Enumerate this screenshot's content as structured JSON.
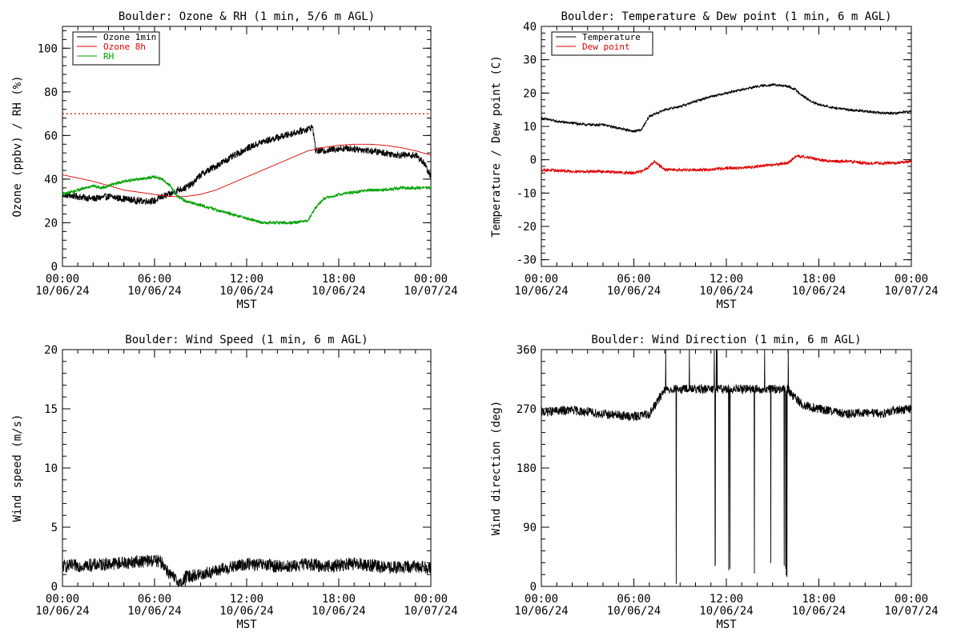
{
  "chart_data": [
    {
      "type": "line",
      "title": "Boulder: Ozone & RH (1 min, 5/6 m AGL)",
      "ylabel": "Ozone (ppbv) / RH (%)",
      "xlabel": "MST",
      "ylim": [
        0,
        110
      ],
      "yticks": [
        0,
        20,
        40,
        60,
        80,
        100
      ],
      "xlim": [
        0,
        24
      ],
      "xticks": [
        {
          "time": "00:00",
          "date": "10/06/24"
        },
        {
          "time": "06:00",
          "date": "10/06/24"
        },
        {
          "time": "12:00",
          "date": "10/06/24"
        },
        {
          "time": "18:00",
          "date": "10/06/24"
        },
        {
          "time": "00:00",
          "date": "10/07/24"
        }
      ],
      "legend": {
        "placement": "top-left",
        "entries": [
          {
            "label": "Ozone 1min",
            "color": "#000000"
          },
          {
            "label": "Ozone 8h",
            "color": "#e00000"
          },
          {
            "label": "RH",
            "color": "#00a000"
          }
        ]
      },
      "reference_lines": [
        {
          "y": 70,
          "color": "#e00000",
          "style": "dotted"
        }
      ],
      "series": [
        {
          "name": "Ozone 1min",
          "color": "#000000",
          "noise": 1.6,
          "x": [
            0,
            1,
            2,
            3,
            4,
            5,
            6,
            6.5,
            7,
            7.5,
            8,
            8.5,
            9,
            10,
            11,
            12,
            13,
            14,
            15,
            16,
            16.3,
            16.5,
            17,
            18,
            19,
            20,
            21,
            22,
            23,
            23.5,
            24
          ],
          "y": [
            33,
            32,
            31,
            32,
            31,
            30,
            30,
            32,
            33,
            35,
            36,
            38,
            42,
            46,
            50,
            54,
            57,
            59,
            61,
            63,
            64,
            53,
            53,
            54,
            54,
            53,
            52,
            51,
            51,
            48,
            41
          ]
        },
        {
          "name": "Ozone 8h",
          "color": "#e00000",
          "noise": 0,
          "x": [
            0,
            2,
            4,
            6,
            7,
            8,
            9,
            10,
            11,
            12,
            13,
            14,
            15,
            16,
            17,
            18,
            19,
            20,
            21,
            22,
            23,
            24
          ],
          "y": [
            42,
            39,
            35,
            33,
            32,
            32,
            33,
            35,
            38,
            41,
            44,
            47,
            50,
            53,
            54.5,
            55.5,
            56,
            56,
            55.5,
            54.5,
            53,
            51
          ]
        },
        {
          "name": "RH",
          "color": "#00a000",
          "noise": 0.7,
          "x": [
            0,
            1,
            2,
            2.5,
            3,
            4,
            5,
            6,
            6.5,
            7,
            7.5,
            8,
            9,
            10,
            11,
            12,
            13,
            14,
            15,
            16,
            16.5,
            17,
            18,
            19,
            20,
            21,
            22,
            23,
            24
          ],
          "y": [
            33,
            35,
            37,
            36,
            37,
            39,
            40,
            41,
            40,
            37,
            32,
            30,
            28,
            26,
            24,
            22,
            20,
            20,
            20,
            21,
            27,
            31,
            33,
            34,
            35,
            35,
            36,
            36,
            36
          ]
        }
      ]
    },
    {
      "type": "line",
      "title": "Boulder: Temperature & Dew point (1 min, 6 m AGL)",
      "ylabel": "Temperature / Dew point (C)",
      "xlabel": "MST",
      "ylim": [
        -32,
        40
      ],
      "yticks": [
        -30,
        -20,
        -10,
        0,
        10,
        20,
        30,
        40
      ],
      "xlim": [
        0,
        24
      ],
      "xticks": [
        {
          "time": "00:00",
          "date": "10/06/24"
        },
        {
          "time": "06:00",
          "date": "10/06/24"
        },
        {
          "time": "12:00",
          "date": "10/06/24"
        },
        {
          "time": "18:00",
          "date": "10/06/24"
        },
        {
          "time": "00:00",
          "date": "10/07/24"
        }
      ],
      "legend": {
        "placement": "top-left",
        "entries": [
          {
            "label": "Temperature",
            "color": "#000000"
          },
          {
            "label": "Dew point",
            "color": "#e00000"
          }
        ]
      },
      "series": [
        {
          "name": "Temperature",
          "color": "#000000",
          "noise": 0.35,
          "x": [
            0,
            1,
            2,
            3,
            4,
            5,
            5.5,
            6,
            6.5,
            7,
            7.5,
            8,
            9,
            10,
            11,
            12,
            13,
            14,
            15,
            16,
            16.5,
            17,
            17.5,
            18,
            19,
            20,
            21,
            22,
            23,
            24
          ],
          "y": [
            12.5,
            11.5,
            11,
            10.5,
            10.5,
            9.5,
            9,
            8.5,
            9,
            13,
            14,
            15,
            16,
            17.5,
            19,
            20,
            21,
            22,
            22.5,
            22,
            21,
            19,
            17.5,
            16.5,
            15.5,
            15,
            14.5,
            14,
            14,
            14.5
          ]
        },
        {
          "name": "Dew point",
          "color": "#e00000",
          "noise": 0.45,
          "x": [
            0,
            2,
            4,
            5,
            6,
            6.5,
            7,
            7.3,
            8,
            9,
            10,
            11,
            12,
            13,
            14,
            15,
            16,
            16.5,
            17,
            18,
            19,
            20,
            21,
            22,
            23,
            24
          ],
          "y": [
            -3,
            -3.5,
            -3.5,
            -3.8,
            -4,
            -3.5,
            -2,
            -0.5,
            -3,
            -3,
            -3,
            -3,
            -2.5,
            -2.5,
            -2,
            -1.5,
            -1,
            1,
            1,
            0,
            -0.5,
            -0.5,
            -1,
            -1,
            -1,
            -0.5
          ]
        }
      ]
    },
    {
      "type": "line",
      "title": "Boulder: Wind Speed (1 min, 6 m AGL)",
      "ylabel": "Wind speed (m/s)",
      "xlabel": "MST",
      "ylim": [
        0,
        20
      ],
      "yticks": [
        0,
        5,
        10,
        15,
        20
      ],
      "xlim": [
        0,
        24
      ],
      "xticks": [
        {
          "time": "00:00",
          "date": "10/06/24"
        },
        {
          "time": "06:00",
          "date": "10/06/24"
        },
        {
          "time": "12:00",
          "date": "10/06/24"
        },
        {
          "time": "18:00",
          "date": "10/06/24"
        },
        {
          "time": "00:00",
          "date": "10/07/24"
        }
      ],
      "series": [
        {
          "name": "Wind speed",
          "color": "#000000",
          "noise": 0.55,
          "x": [
            0,
            2,
            4,
            6,
            6.5,
            7,
            7.5,
            7.8,
            8,
            9,
            10,
            11,
            12,
            13,
            14,
            15,
            16,
            17,
            18,
            19,
            20,
            21,
            22,
            23,
            24
          ],
          "y": [
            1.7,
            1.8,
            2.0,
            2.2,
            2.0,
            1.0,
            0.4,
            0.2,
            0.8,
            1.0,
            1.3,
            1.6,
            1.9,
            1.8,
            1.7,
            1.7,
            1.9,
            1.7,
            1.8,
            1.9,
            1.8,
            1.6,
            1.6,
            1.7,
            1.6
          ]
        }
      ]
    },
    {
      "type": "line",
      "title": "Boulder: Wind Direction (1 min, 6 m AGL)",
      "ylabel": "Wind direction (deg)",
      "xlabel": "MST",
      "ylim": [
        0,
        360
      ],
      "yticks": [
        0,
        90,
        180,
        270,
        360
      ],
      "xlim": [
        0,
        24
      ],
      "xticks": [
        {
          "time": "00:00",
          "date": "10/06/24"
        },
        {
          "time": "06:00",
          "date": "10/06/24"
        },
        {
          "time": "12:00",
          "date": "10/06/24"
        },
        {
          "time": "18:00",
          "date": "10/06/24"
        },
        {
          "time": "00:00",
          "date": "10/07/24"
        }
      ],
      "series": [
        {
          "name": "Wind direction",
          "color": "#000000",
          "noise": 7,
          "x": [
            0,
            2,
            4,
            6,
            7,
            7.5,
            8,
            16,
            16.3,
            17,
            18,
            19,
            20,
            21,
            22,
            23,
            24
          ],
          "y": [
            265,
            268,
            262,
            258,
            262,
            280,
            300,
            300,
            290,
            275,
            270,
            265,
            262,
            265,
            262,
            268,
            270
          ],
          "wrap_range": [
            8.0,
            16.2
          ]
        }
      ]
    }
  ]
}
